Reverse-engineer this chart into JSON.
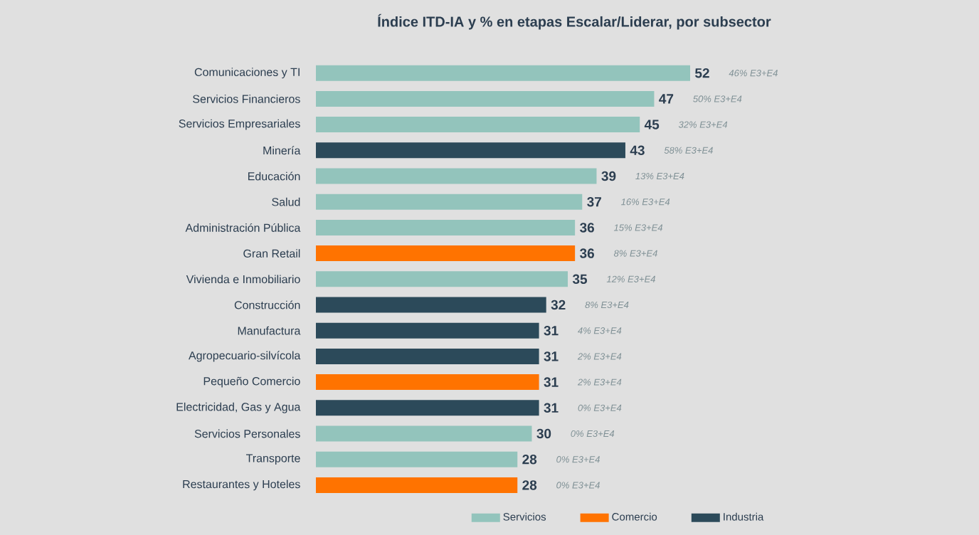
{
  "chart_data": {
    "type": "bar",
    "orientation": "horizontal",
    "title": "Índice ITD-IA y % en etapas Escalar/Liderar, por subsector",
    "categories": [
      "Comunicaciones y TI",
      "Servicios Financieros",
      "Servicios Empresariales",
      "Minería",
      "Educación",
      "Salud",
      "Administración Pública",
      "Gran Retail",
      "Vivienda e Inmobiliario",
      "Construcción",
      "Manufactura",
      "Agropecuario-silvícola",
      "Pequeño Comercio",
      "Electricidad, Gas y Agua",
      "Servicios Personales",
      "Transporte",
      "Restaurantes y Hoteles"
    ],
    "series": [
      {
        "name": "Servicios",
        "color": "#93c4bc",
        "values": [
          52,
          47,
          45,
          null,
          39,
          37,
          36,
          null,
          35,
          null,
          null,
          null,
          null,
          null,
          30,
          28,
          null
        ]
      },
      {
        "name": "Comercio",
        "color": "#ff7300",
        "values": [
          null,
          null,
          null,
          null,
          null,
          null,
          null,
          36,
          null,
          null,
          null,
          null,
          31,
          null,
          null,
          null,
          28
        ]
      },
      {
        "name": "Industria",
        "color": "#2c4a5a",
        "values": [
          null,
          null,
          null,
          43,
          null,
          null,
          null,
          null,
          null,
          32,
          31,
          31,
          null,
          31,
          null,
          null,
          null
        ]
      }
    ],
    "data_labels": true,
    "tick_labels": "y",
    "legend": "bottom",
    "grid": false,
    "annotations": [
      "46% E3+E4",
      "50% E3+E4",
      "32% E3+E4",
      "58% E3+E4",
      "13% E3+E4",
      "16% E3+E4",
      "15% E3+E4",
      "8% E3+E4",
      "12% E3+E4",
      "8% E3+E4",
      "4% E3+E4",
      "2% E3+E4",
      "2% E3+E4",
      "0% E3+E4",
      "0% E3+E4",
      "0% E3+E4",
      "0% E3+E4"
    ]
  }
}
